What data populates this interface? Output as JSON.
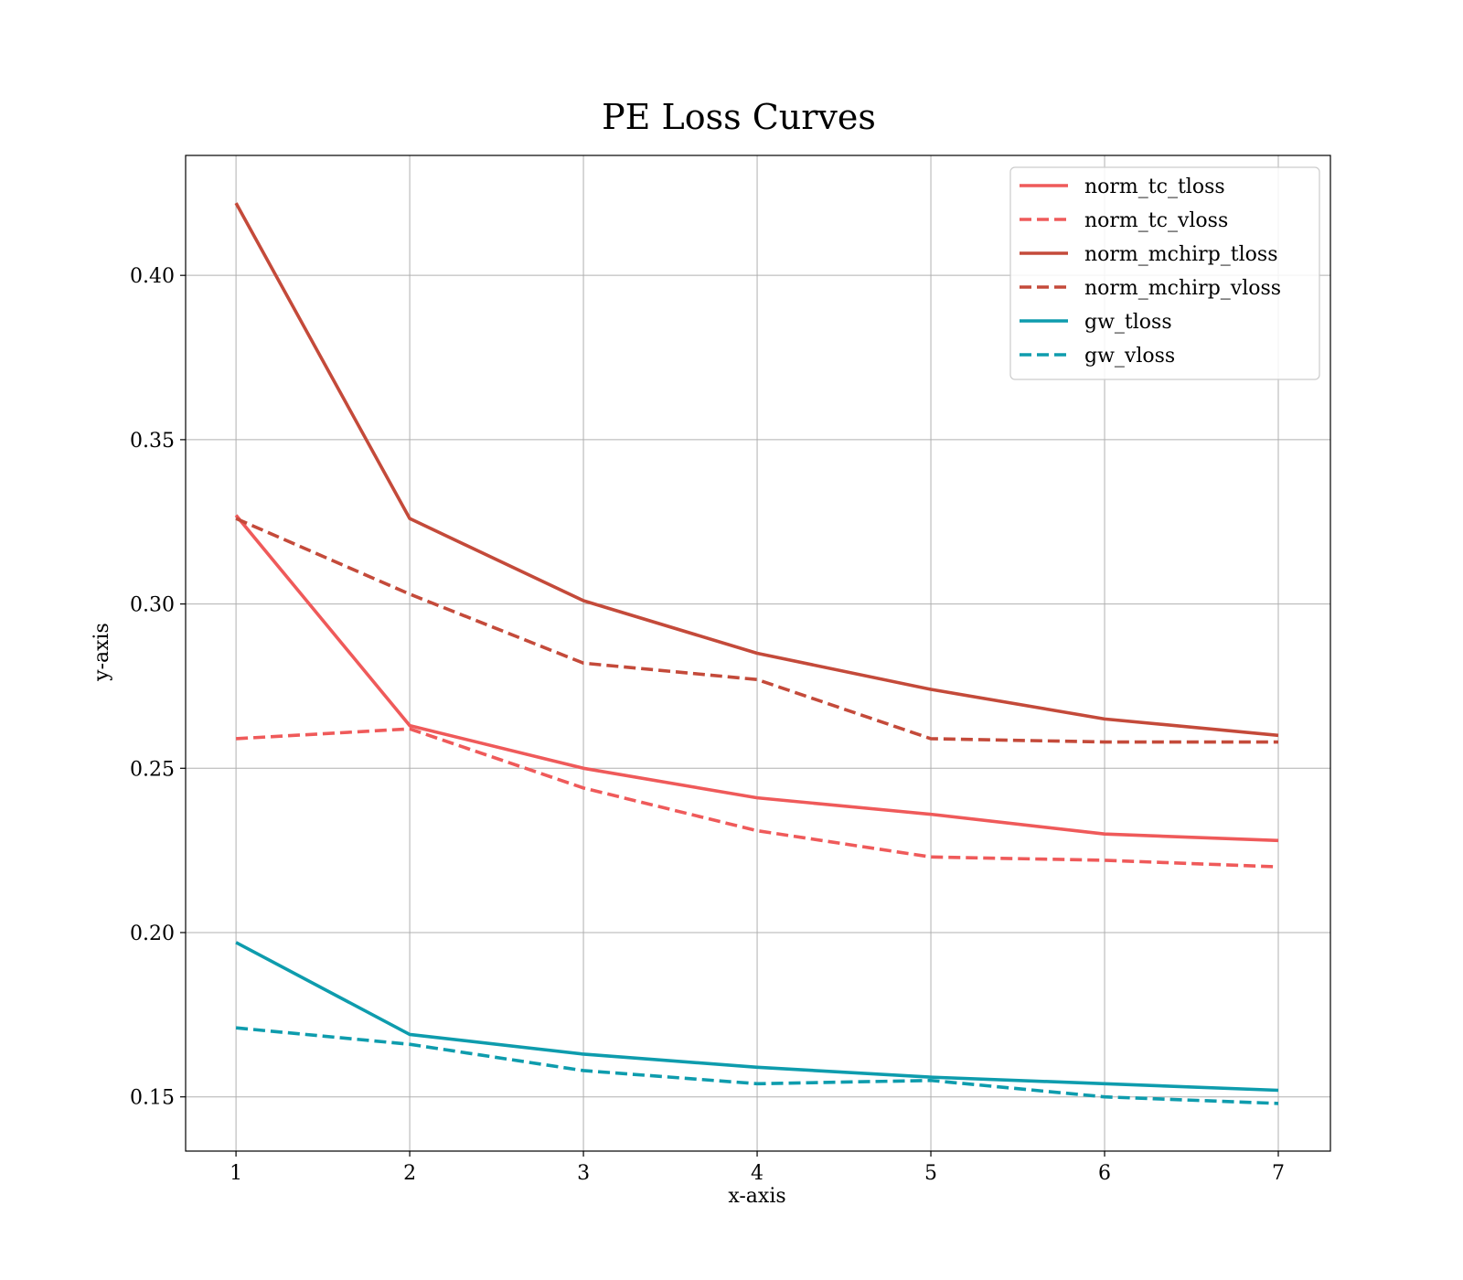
{
  "chart_data": {
    "type": "line",
    "title": "PE Loss Curves",
    "xlabel": "x-axis",
    "ylabel": "y-axis",
    "x": [
      1,
      2,
      3,
      4,
      5,
      6,
      7
    ],
    "xlim": [
      0.71,
      7.3
    ],
    "ylim": [
      0.1335,
      0.4365
    ],
    "xticks": [
      1,
      2,
      3,
      4,
      5,
      6,
      7
    ],
    "yticks": [
      0.15,
      0.2,
      0.25,
      0.3,
      0.35,
      0.4
    ],
    "grid": true,
    "legend_position": "top-right",
    "series": [
      {
        "name": "norm_tc_tloss",
        "style": "solid",
        "color": "#EF5A5A",
        "values": [
          0.327,
          0.263,
          0.25,
          0.241,
          0.236,
          0.23,
          0.228
        ]
      },
      {
        "name": "norm_tc_vloss",
        "style": "dashed",
        "color": "#EF5A5A",
        "values": [
          0.259,
          0.262,
          0.244,
          0.231,
          0.223,
          0.222,
          0.22
        ]
      },
      {
        "name": "norm_mchirp_tloss",
        "style": "solid",
        "color": "#C44A3A",
        "values": [
          0.422,
          0.326,
          0.301,
          0.285,
          0.274,
          0.265,
          0.26
        ]
      },
      {
        "name": "norm_mchirp_vloss",
        "style": "dashed",
        "color": "#C44A3A",
        "values": [
          0.326,
          0.303,
          0.282,
          0.277,
          0.259,
          0.258,
          0.258
        ]
      },
      {
        "name": "gw_tloss",
        "style": "solid",
        "color": "#0E9CAD",
        "values": [
          0.197,
          0.169,
          0.163,
          0.159,
          0.156,
          0.154,
          0.152
        ]
      },
      {
        "name": "gw_vloss",
        "style": "dashed",
        "color": "#0E9CAD",
        "values": [
          0.171,
          0.166,
          0.158,
          0.154,
          0.155,
          0.15,
          0.148
        ]
      }
    ]
  }
}
